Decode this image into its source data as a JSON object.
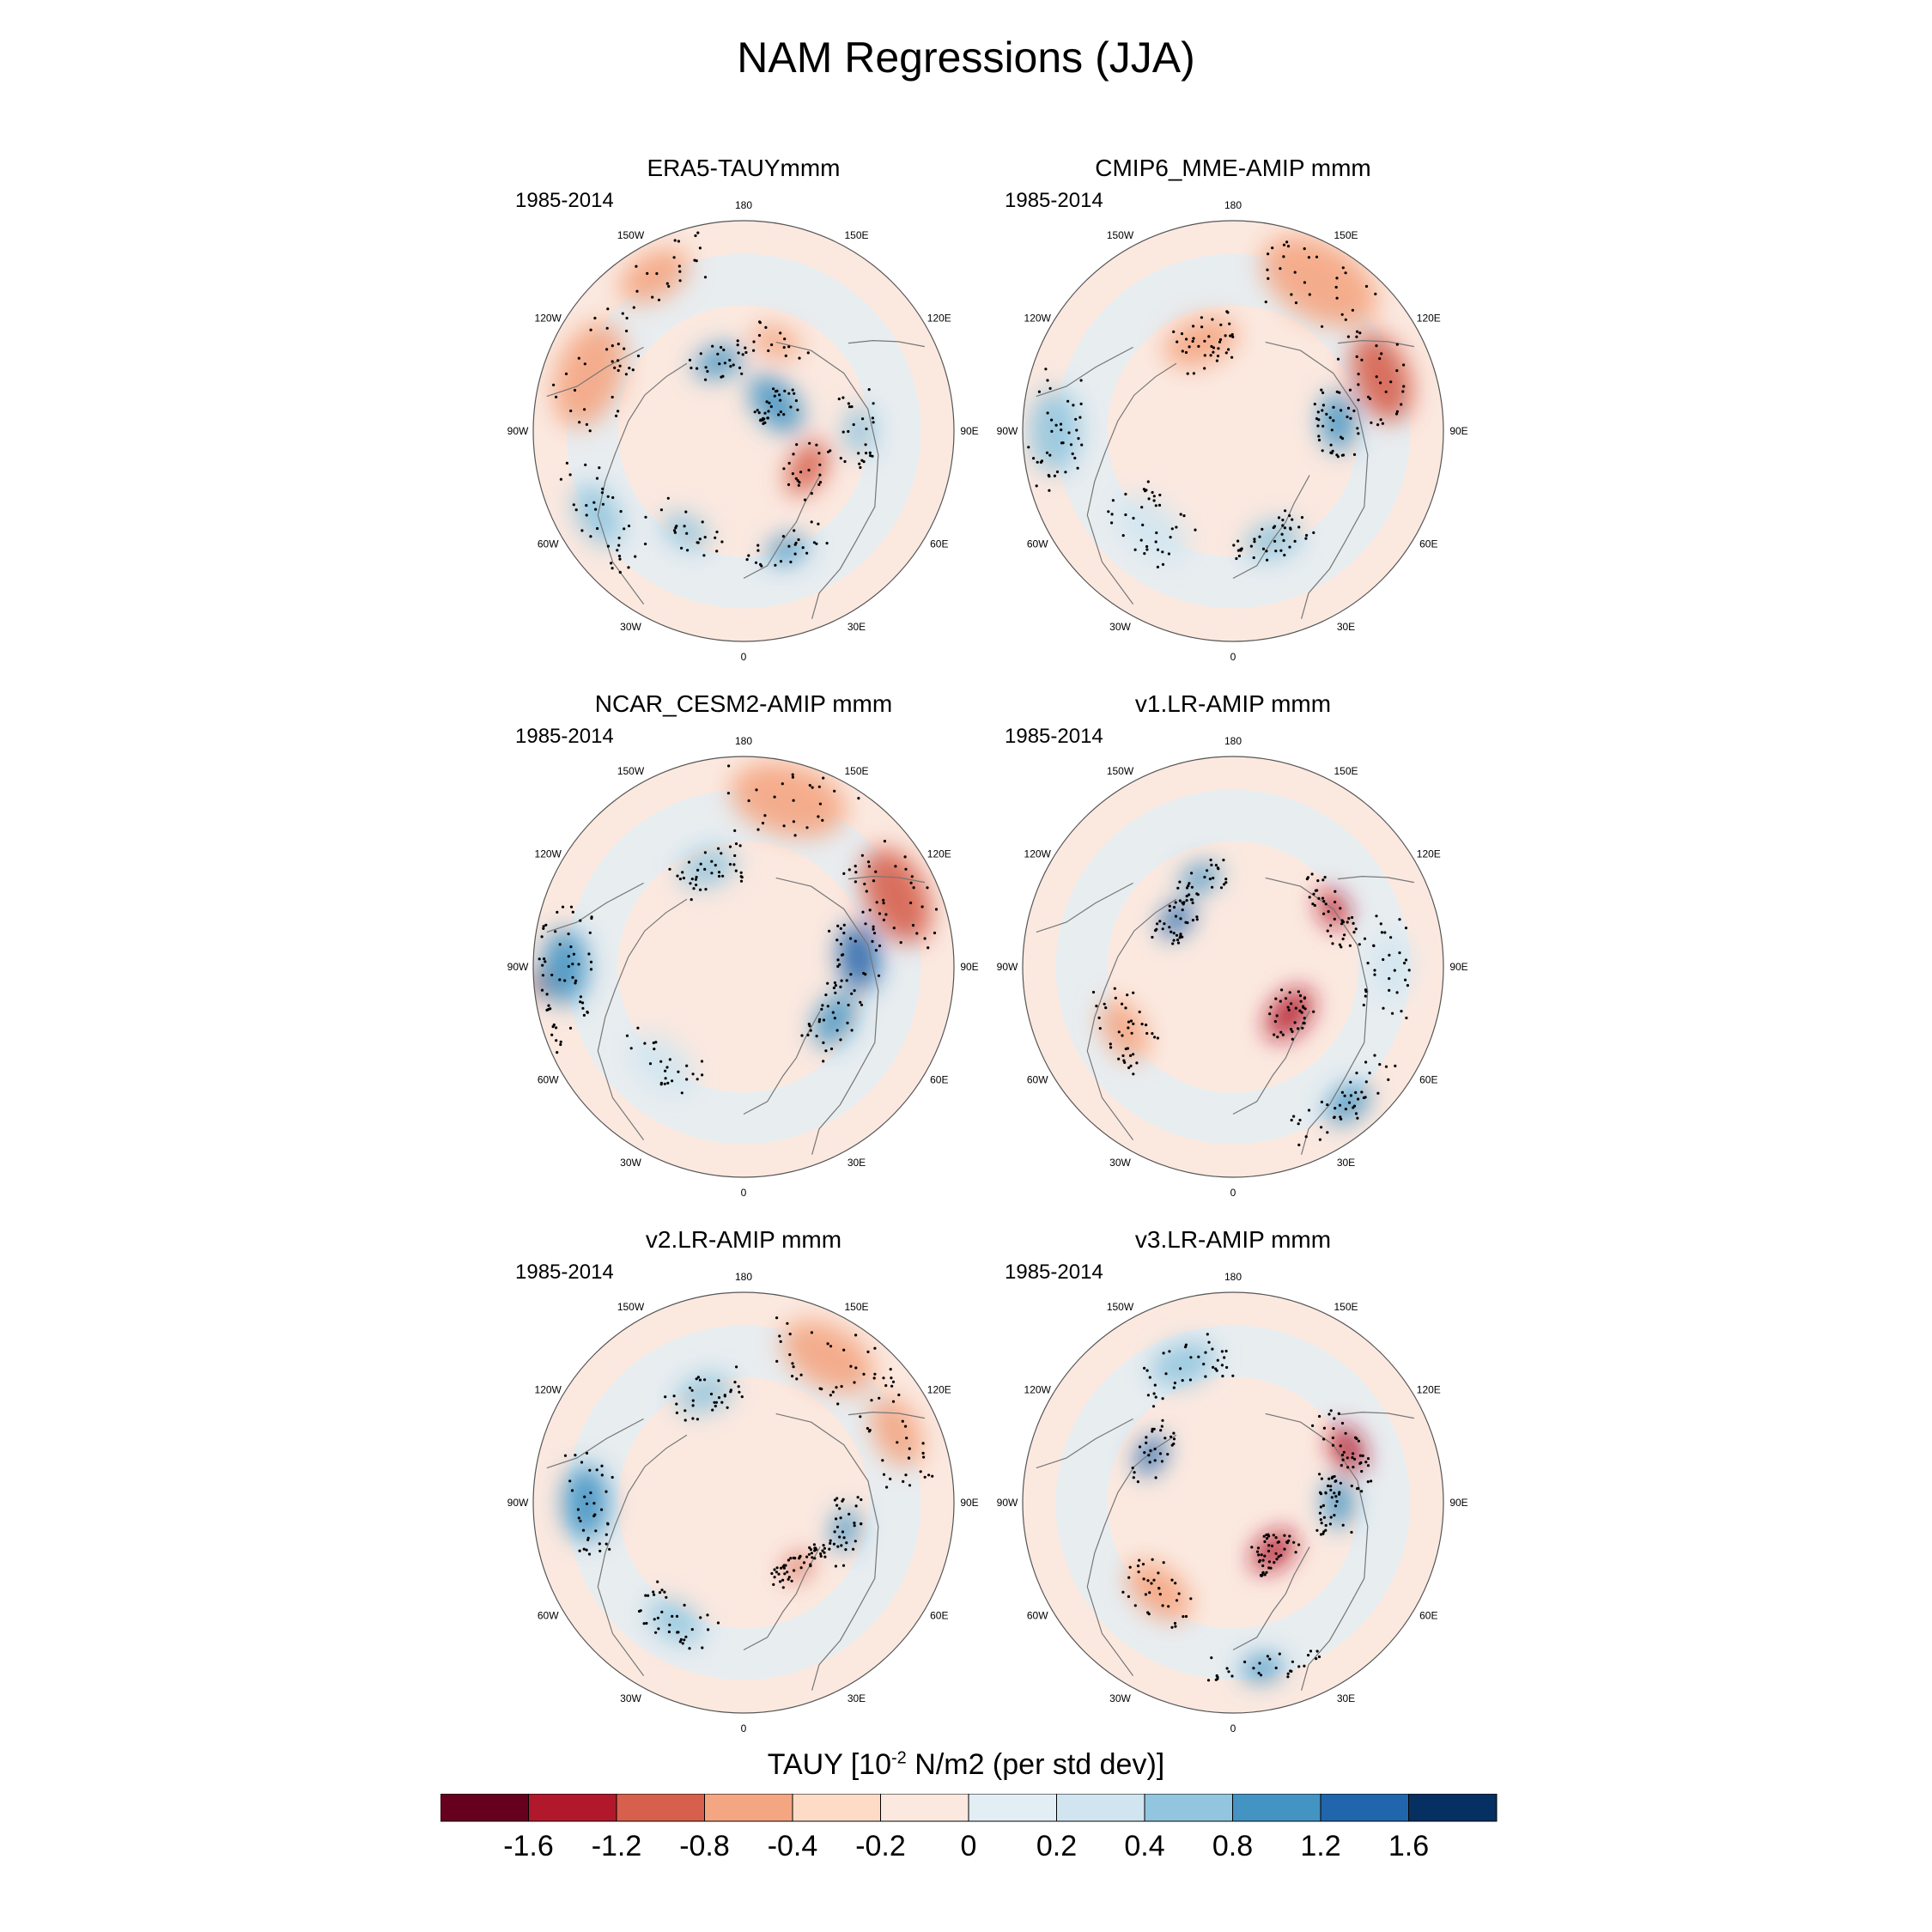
{
  "title": "NAM Regressions (JJA)",
  "period": "1985-2014",
  "panels": [
    {
      "title": "ERA5-TAUYmmm"
    },
    {
      "title": "CMIP6_MME-AMIP  mmm"
    },
    {
      "title": "NCAR_CESM2-AMIP  mmm"
    },
    {
      "title": "v1.LR-AMIP  mmm"
    },
    {
      "title": "v2.LR-AMIP  mmm"
    },
    {
      "title": "v3.LR-AMIP  mmm"
    }
  ],
  "longitude_labels": [
    "180",
    "150E",
    "120E",
    "90E",
    "60E",
    "30E",
    "0",
    "30W",
    "60W",
    "90W",
    "120W",
    "150W"
  ],
  "colorbar": {
    "title_prefix": "TAUY [10",
    "title_exponent": "-2",
    "title_suffix": " N/m2 (per std dev)]",
    "levels": [
      "-1.6",
      "-1.2",
      "-0.8",
      "-0.4",
      "-0.2",
      "0",
      "0.2",
      "0.4",
      "0.8",
      "1.2",
      "1.6"
    ],
    "colors": [
      "#67001f",
      "#b2182b",
      "#d6604d",
      "#f4a582",
      "#fddbc7",
      "#fbe9e0",
      "#e3edf4",
      "#d1e5f0",
      "#92c5de",
      "#4393c3",
      "#2166ac",
      "#053061"
    ]
  }
}
